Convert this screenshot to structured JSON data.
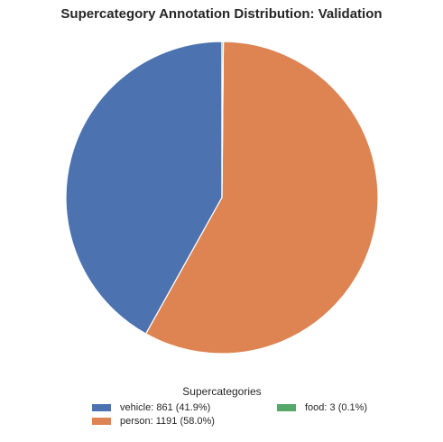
{
  "chart_data": {
    "type": "pie",
    "title": "Supercategory Annotation Distribution: Validation",
    "slices": [
      {
        "label": "vehicle",
        "value": 861,
        "percent": 41.9,
        "color": "#4c72b0",
        "legend_text": "vehicle: 861 (41.9%)"
      },
      {
        "label": "person",
        "value": 1191,
        "percent": 58.0,
        "color": "#dd8452",
        "legend_text": "person: 1191 (58.0%)"
      },
      {
        "label": "food",
        "value": 3,
        "percent": 0.1,
        "color": "#55a868",
        "legend_text": "food: 3 (0.1%)"
      }
    ],
    "legend": {
      "title": "Supercategories",
      "placement": "bottom-center"
    }
  }
}
